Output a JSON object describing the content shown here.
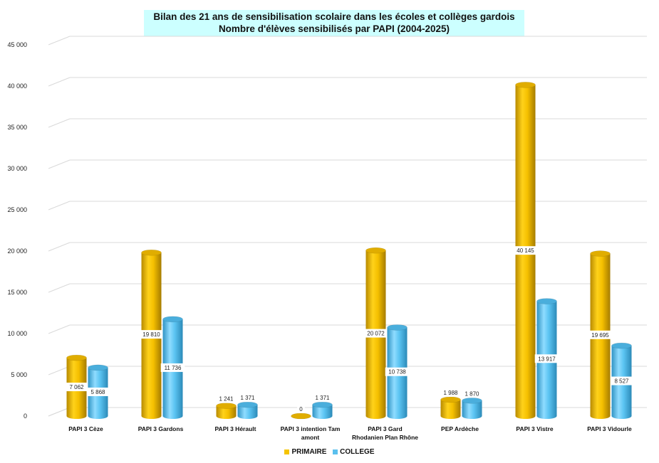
{
  "chart_data": {
    "type": "bar",
    "title": "Bilan des 21 ans de sensibilisation scolaire dans les écoles et collèges gardois",
    "subtitle": "Nombre d'élèves sensibilisés par PAPI (2004-2025)",
    "categories": [
      [
        "PAPI 3 Cèze"
      ],
      [
        "PAPI 3 Gardons"
      ],
      [
        "PAPI 3 Hérault"
      ],
      [
        "PAPI 3 intention  Tam",
        "amont"
      ],
      [
        "PAPI 3 Gard",
        "Rhodanien Plan Rhône"
      ],
      [
        "PEP Ardèche"
      ],
      [
        "PAPI 3 Vistre"
      ],
      [
        "PAPI 3 Vidourle"
      ]
    ],
    "series": [
      {
        "name": "PRIMAIRE",
        "color": "#f5c400",
        "values": [
          7062,
          19810,
          1241,
          0,
          20072,
          1988,
          40145,
          19695
        ],
        "labels": [
          "7 062",
          "19 810",
          "1 241",
          "0",
          "20 072",
          "1 988",
          "40 145",
          "19 695"
        ]
      },
      {
        "name": "COLLEGE",
        "color": "#5bc0ee",
        "values": [
          5868,
          11736,
          1371,
          1371,
          10738,
          1870,
          13917,
          8527
        ],
        "labels": [
          "5 868",
          "11 736",
          "1 371",
          "1 371",
          "10 738",
          "1 870",
          "13 917",
          "8 527"
        ]
      }
    ],
    "ylim": [
      0,
      45000
    ],
    "yticks": [
      0,
      5000,
      10000,
      15000,
      20000,
      25000,
      30000,
      35000,
      40000,
      45000
    ],
    "ytick_labels": [
      "0",
      "5 000",
      "10 000",
      "15 000",
      "20 000",
      "25 000",
      "30 000",
      "35 000",
      "40 000",
      "45 000"
    ],
    "xlabel": "",
    "ylabel": "",
    "grid": true,
    "legend": "bottom-center"
  }
}
